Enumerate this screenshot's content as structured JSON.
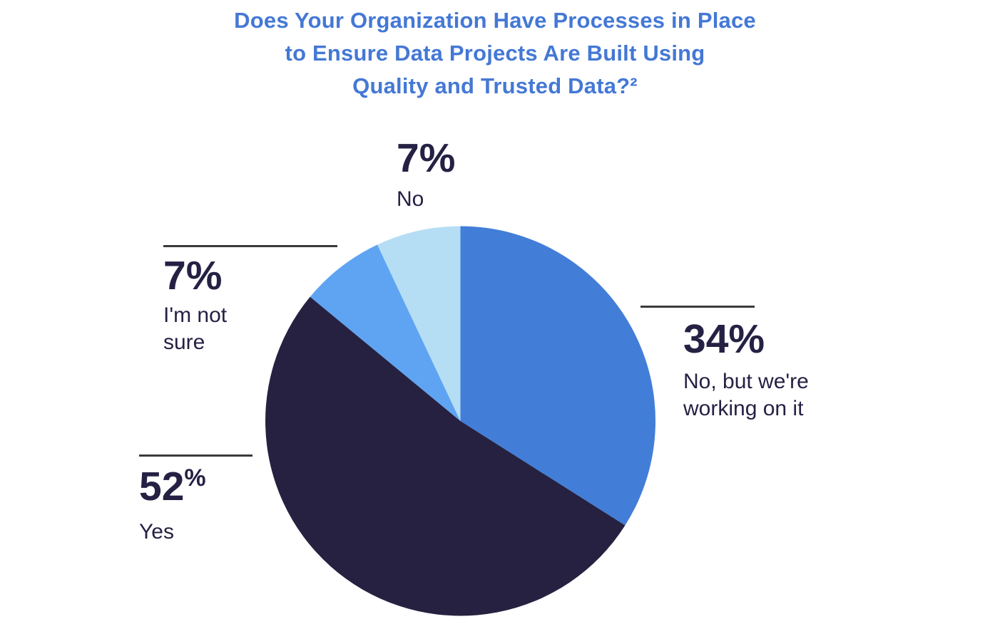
{
  "page": {
    "background": "#FFFFFF"
  },
  "title": {
    "lines": [
      "Does Your Organization Have Processes in Place",
      "to Ensure Data Projects Are Built Using",
      "Quality and Trusted Data?²"
    ],
    "color": "#4478D5"
  },
  "chart_data": {
    "type": "pie",
    "title": "Does Your Organization Have Processes in Place to Ensure Data Projects Are Built Using Quality and Trusted Data?²",
    "unit": "percent",
    "start_angle_deg": 0,
    "direction": "clockwise",
    "legend": "none",
    "slices": [
      {
        "label": "No, but we're working on it",
        "value": 34,
        "color": "#427ED8"
      },
      {
        "label": "Yes",
        "value": 52,
        "color": "#262140"
      },
      {
        "label": "I'm not sure",
        "value": 7,
        "color": "#5FA4F2"
      },
      {
        "label": "No",
        "value": 7,
        "color": "#B5DEF4"
      }
    ]
  },
  "callouts": {
    "no": {
      "value": "7%",
      "label": "No"
    },
    "not_sure": {
      "value": "7%",
      "label": "I'm not sure"
    },
    "yes": {
      "number": "52",
      "percent_sign": "%",
      "label": "Yes"
    },
    "working": {
      "value": "34%",
      "label": "No, but we're working on it"
    }
  },
  "colors": {
    "text": "#252144",
    "callout_rule": "#3A3A3A",
    "title": "#4478D5",
    "background": "#FFFFFF"
  }
}
